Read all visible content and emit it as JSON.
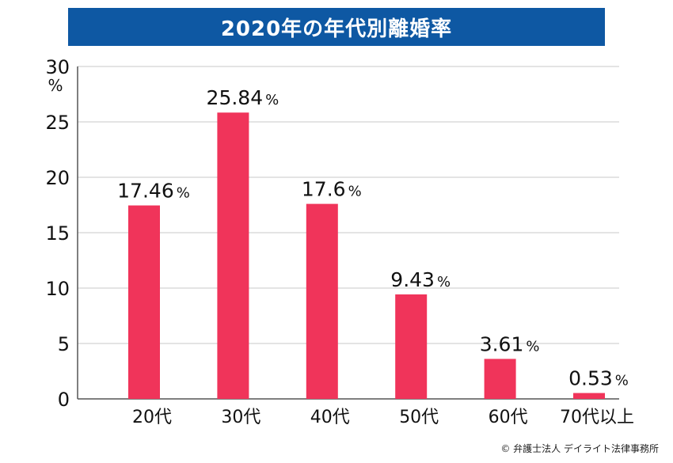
{
  "title": "2020年の年代別離婚率",
  "copyright": "© 弁護士法人 デイライト法律事務所",
  "colors": {
    "title_bg": "#0e58a3",
    "bar": "#f0345a",
    "grid": "#c8c8c8",
    "axis": "#555555"
  },
  "chart_data": {
    "type": "bar",
    "title": "2020年の年代別離婚率",
    "ylabel": "%",
    "ylim": [
      0,
      30
    ],
    "yticks": [
      0,
      5,
      10,
      15,
      20,
      25,
      30
    ],
    "grid": true,
    "categories": [
      "20代",
      "30代",
      "40代",
      "50代",
      "60代",
      "70代以上"
    ],
    "values": [
      17.46,
      25.84,
      17.6,
      9.43,
      3.61,
      0.53
    ],
    "value_labels": [
      "17.46",
      "25.84",
      "17.6",
      "9.43",
      "3.61",
      "0.53"
    ],
    "value_unit": "%"
  }
}
